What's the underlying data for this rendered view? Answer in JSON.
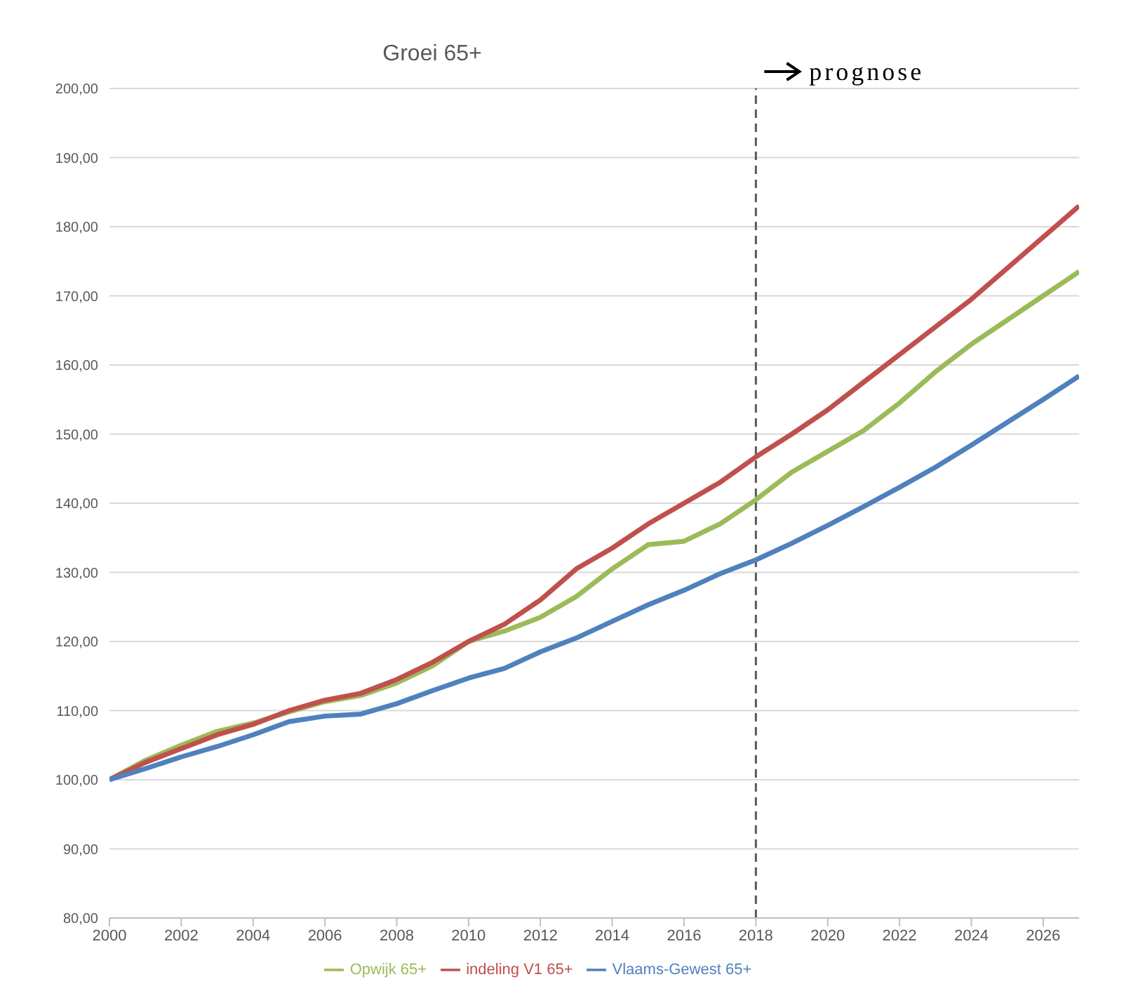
{
  "chart_data": {
    "type": "line",
    "title": "Groei 65+",
    "x": [
      2000,
      2001,
      2002,
      2003,
      2004,
      2005,
      2006,
      2007,
      2008,
      2009,
      2010,
      2011,
      2012,
      2013,
      2014,
      2015,
      2016,
      2017,
      2018,
      2019,
      2020,
      2021,
      2022,
      2023,
      2024,
      2025,
      2026,
      2027
    ],
    "series": [
      {
        "name": "Opwijk 65+",
        "color": "#9bbb59",
        "values": [
          100,
          102.8,
          105,
          107,
          108.2,
          109.8,
          111.3,
          112.2,
          114,
          116.5,
          120,
          121.5,
          123.5,
          126.5,
          130.5,
          134,
          134.5,
          137,
          140.5,
          144.5,
          147.5,
          150.5,
          154.5,
          159,
          163,
          166.5,
          170,
          173.5
        ]
      },
      {
        "name": "indeling V1 65+",
        "color": "#c0504d",
        "values": [
          100,
          102.5,
          104.5,
          106.5,
          108,
          110,
          111.5,
          112.5,
          114.5,
          117,
          120,
          122.5,
          126,
          130.5,
          133.5,
          137,
          140,
          143,
          146.7,
          150,
          153.5,
          157.5,
          161.5,
          165.5,
          169.5,
          174,
          178.5,
          183
        ]
      },
      {
        "name": "Vlaams-Gewest 65+",
        "color": "#4f81bd",
        "values": [
          100,
          101.6,
          103.3,
          104.8,
          106.5,
          108.4,
          109.2,
          109.5,
          111,
          112.9,
          114.7,
          116.1,
          118.5,
          120.5,
          122.9,
          125.3,
          127.4,
          129.8,
          131.8,
          134.2,
          136.8,
          139.5,
          142.3,
          145.2,
          148.4,
          151.7,
          155,
          158.4
        ]
      }
    ],
    "xlim": [
      2000,
      2027
    ],
    "xticks": [
      2000,
      2002,
      2004,
      2006,
      2008,
      2010,
      2012,
      2014,
      2016,
      2018,
      2020,
      2022,
      2024,
      2026
    ],
    "ylim": [
      80,
      200
    ],
    "yticks": [
      {
        "value": 80,
        "label": "80,00"
      },
      {
        "value": 90,
        "label": "90,00"
      },
      {
        "value": 100,
        "label": "100,00"
      },
      {
        "value": 110,
        "label": "110,00"
      },
      {
        "value": 120,
        "label": "120,00"
      },
      {
        "value": 130,
        "label": "130,00"
      },
      {
        "value": 140,
        "label": "140,00"
      },
      {
        "value": 150,
        "label": "150,00"
      },
      {
        "value": 160,
        "label": "160,00"
      },
      {
        "value": 170,
        "label": "170,00"
      },
      {
        "value": 180,
        "label": "180,00"
      },
      {
        "value": 190,
        "label": "190,00"
      },
      {
        "value": 200,
        "label": "200,00"
      }
    ],
    "ref_lines": [
      {
        "axis": "x",
        "value": 2018,
        "label": "prognose",
        "color": "#595959",
        "line_style": "dashed"
      }
    ],
    "grid": "y",
    "legend": "bottom",
    "marker": "none",
    "line_style": "solid"
  }
}
